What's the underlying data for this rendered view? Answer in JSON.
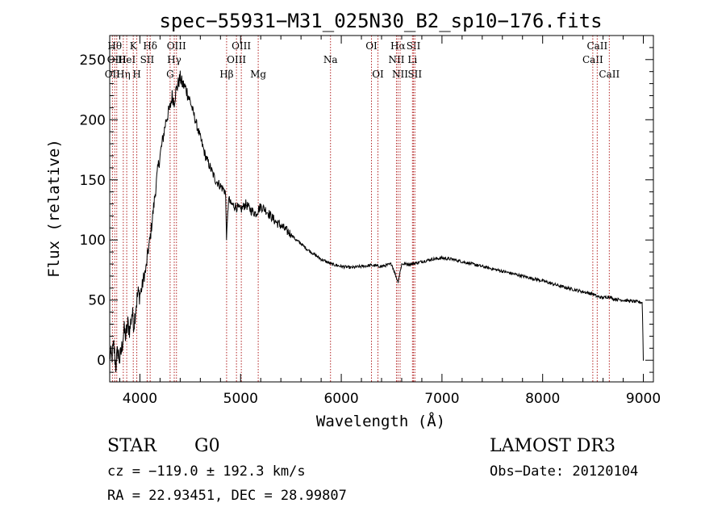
{
  "chart_data": {
    "type": "line",
    "title": "spec−55931−M31_025N30_B2_sp10−176.fits",
    "xlabel": "Wavelength (Å)",
    "ylabel": "Flux (relative)",
    "xlim": [
      3700,
      9100
    ],
    "ylim": [
      -18,
      270
    ],
    "xticks": [
      4000,
      5000,
      6000,
      7000,
      8000,
      9000
    ],
    "yticks": [
      0,
      50,
      100,
      150,
      200,
      250
    ],
    "grid": false,
    "line_color": "#000000",
    "marker_color": "#b22222",
    "series": [
      {
        "name": "flux",
        "x": [
          3700,
          3720,
          3740,
          3760,
          3780,
          3800,
          3820,
          3840,
          3860,
          3880,
          3900,
          3920,
          3940,
          3960,
          3980,
          4000,
          4020,
          4040,
          4060,
          4080,
          4100,
          4120,
          4140,
          4160,
          4180,
          4200,
          4220,
          4240,
          4260,
          4280,
          4300,
          4320,
          4340,
          4360,
          4380,
          4400,
          4420,
          4440,
          4460,
          4480,
          4500,
          4550,
          4600,
          4650,
          4700,
          4750,
          4800,
          4850,
          4861,
          4880,
          4900,
          4950,
          5000,
          5050,
          5100,
          5150,
          5200,
          5250,
          5300,
          5350,
          5400,
          5450,
          5500,
          5550,
          5600,
          5650,
          5700,
          5750,
          5800,
          5850,
          5900,
          5950,
          6000,
          6100,
          6200,
          6300,
          6400,
          6500,
          6563,
          6600,
          6700,
          6800,
          6900,
          7000,
          7100,
          7200,
          7400,
          7600,
          7800,
          8000,
          8200,
          8400,
          8500,
          8542,
          8600,
          8662,
          8700,
          8800,
          8900,
          8990,
          9000
        ],
        "y": [
          5,
          2,
          12,
          -5,
          8,
          0,
          10,
          25,
          20,
          30,
          25,
          40,
          30,
          45,
          55,
          55,
          60,
          70,
          75,
          90,
          100,
          115,
          130,
          145,
          160,
          170,
          180,
          190,
          200,
          205,
          210,
          220,
          215,
          225,
          230,
          235,
          230,
          228,
          225,
          220,
          215,
          200,
          185,
          170,
          160,
          150,
          145,
          140,
          100,
          135,
          130,
          128,
          125,
          130,
          125,
          122,
          128,
          125,
          120,
          115,
          112,
          108,
          105,
          100,
          97,
          93,
          90,
          87,
          84,
          82,
          80,
          79,
          78,
          77,
          78,
          79,
          78,
          80,
          65,
          80,
          80,
          82,
          84,
          85,
          84,
          82,
          78,
          74,
          70,
          66,
          61,
          57,
          55,
          53,
          52,
          53,
          51,
          50,
          49,
          48,
          0
        ]
      }
    ],
    "line_markers": [
      {
        "wavelength": 3750,
        "label": "Hθ",
        "row": 1
      },
      {
        "wavelength": 3727,
        "label": "OII",
        "row": 3
      },
      {
        "wavelength": 3770,
        "label": "OIII",
        "row": 2
      },
      {
        "wavelength": 3835,
        "label": "Hη",
        "row": 3
      },
      {
        "wavelength": 3869,
        "label": "HeI",
        "row": 2
      },
      {
        "wavelength": 3934,
        "label": "K",
        "row": 1
      },
      {
        "wavelength": 3969,
        "label": "H",
        "row": 3
      },
      {
        "wavelength": 4072,
        "label": "SII",
        "row": 2
      },
      {
        "wavelength": 4102,
        "label": "Hδ",
        "row": 1
      },
      {
        "wavelength": 4300,
        "label": "G",
        "row": 3
      },
      {
        "wavelength": 4341,
        "label": "Hγ",
        "row": 2
      },
      {
        "wavelength": 4363,
        "label": "OIII",
        "row": 1
      },
      {
        "wavelength": 4861,
        "label": "Hβ",
        "row": 3
      },
      {
        "wavelength": 4959,
        "label": "OIII",
        "row": 2
      },
      {
        "wavelength": 5007,
        "label": "OIII",
        "row": 1
      },
      {
        "wavelength": 5175,
        "label": "Mg",
        "row": 3
      },
      {
        "wavelength": 5893,
        "label": "Na",
        "row": 2
      },
      {
        "wavelength": 6300,
        "label": "OI",
        "row": 1
      },
      {
        "wavelength": 6364,
        "label": "OI",
        "row": 3
      },
      {
        "wavelength": 6548,
        "label": "NII",
        "row": 2
      },
      {
        "wavelength": 6563,
        "label": "Hα",
        "row": 1
      },
      {
        "wavelength": 6584,
        "label": "NII",
        "row": 3
      },
      {
        "wavelength": 6707,
        "label": "Li",
        "row": 2
      },
      {
        "wavelength": 6717,
        "label": "SII",
        "row": 1
      },
      {
        "wavelength": 6731,
        "label": "SII",
        "row": 3
      },
      {
        "wavelength": 8498,
        "label": "CaII",
        "row": 2
      },
      {
        "wavelength": 8542,
        "label": "CaII",
        "row": 1
      },
      {
        "wavelength": 8662,
        "label": "CaII",
        "row": 3
      }
    ]
  },
  "info": {
    "object_class": "STAR",
    "subclass": "G0",
    "survey": "LAMOST DR3",
    "redshift_text": "cz = −119.0 ± 192.3 km/s",
    "obs_date_text": "Obs−Date: 20120104",
    "coords_text": "RA =  22.93451, DEC =  28.99807"
  }
}
